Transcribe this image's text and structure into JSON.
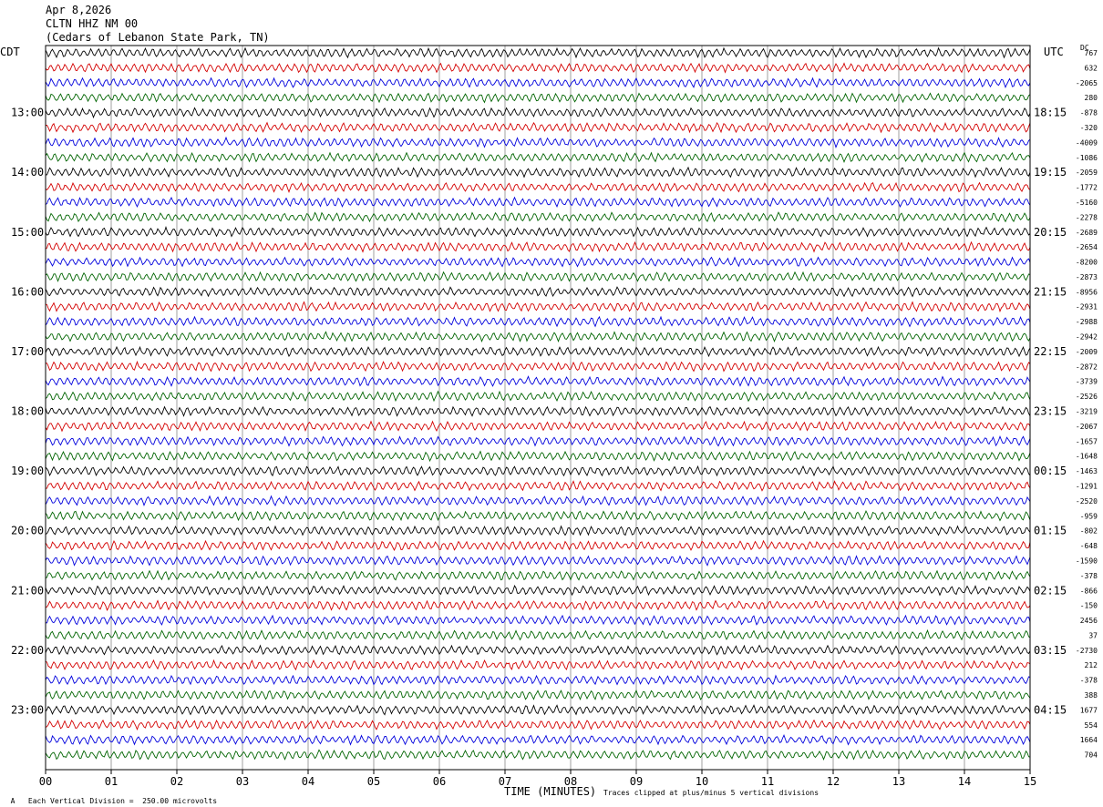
{
  "header": {
    "date": "Apr 8,2026",
    "station": "CLTN HHZ NM 00",
    "location": "(Cedars of Lebanon State Park, TN)"
  },
  "labels": {
    "left_zone": "CDT",
    "right_zone": "UTC",
    "dc": "DC"
  },
  "footer": {
    "scale": "Each Vertical Division =  250.00 microvolts",
    "clip": "Traces clipped at plus/minus 5 vertical divisions",
    "corner_mark": "A"
  },
  "chart_data": {
    "type": "line",
    "xlabel": "TIME (MINUTES)",
    "x_ticks": [
      "00",
      "01",
      "02",
      "03",
      "04",
      "05",
      "06",
      "07",
      "08",
      "09",
      "10",
      "11",
      "12",
      "13",
      "14",
      "15"
    ],
    "xlim": [
      0,
      15
    ],
    "trace_colors": [
      "#000000",
      "#d40000",
      "#0000dd",
      "#006400"
    ],
    "left_hour_labels": [
      "13:00",
      "14:00",
      "15:00",
      "16:00",
      "17:00",
      "18:00",
      "19:00",
      "20:00",
      "21:00",
      "22:00",
      "23:00"
    ],
    "right_hour_labels": [
      "18:15",
      "19:15",
      "20:15",
      "21:15",
      "22:15",
      "23:15",
      "00:15",
      "01:15",
      "02:15",
      "03:15",
      "04:15"
    ],
    "dc_offsets": [
      "767",
      "632",
      "-2065",
      "280",
      "-878",
      "-320",
      "-4009",
      "-1086",
      "-2059",
      "-1772",
      "-5160",
      "-2278",
      "-2689",
      "-2654",
      "-8200",
      "-2873",
      "-8956",
      "-2931",
      "-2988",
      "-2942",
      "-2009",
      "-2872",
      "-3739",
      "-2526",
      "-3219",
      "-2067",
      "-1657",
      "-1648",
      "-1463",
      "-1291",
      "-2520",
      "-959",
      "-802",
      "-648",
      "-1590",
      "-378",
      "-866",
      "-150",
      "2456",
      "37",
      "-2730",
      "212",
      "-378",
      "388",
      "1677",
      "554",
      "1664",
      "704"
    ]
  }
}
